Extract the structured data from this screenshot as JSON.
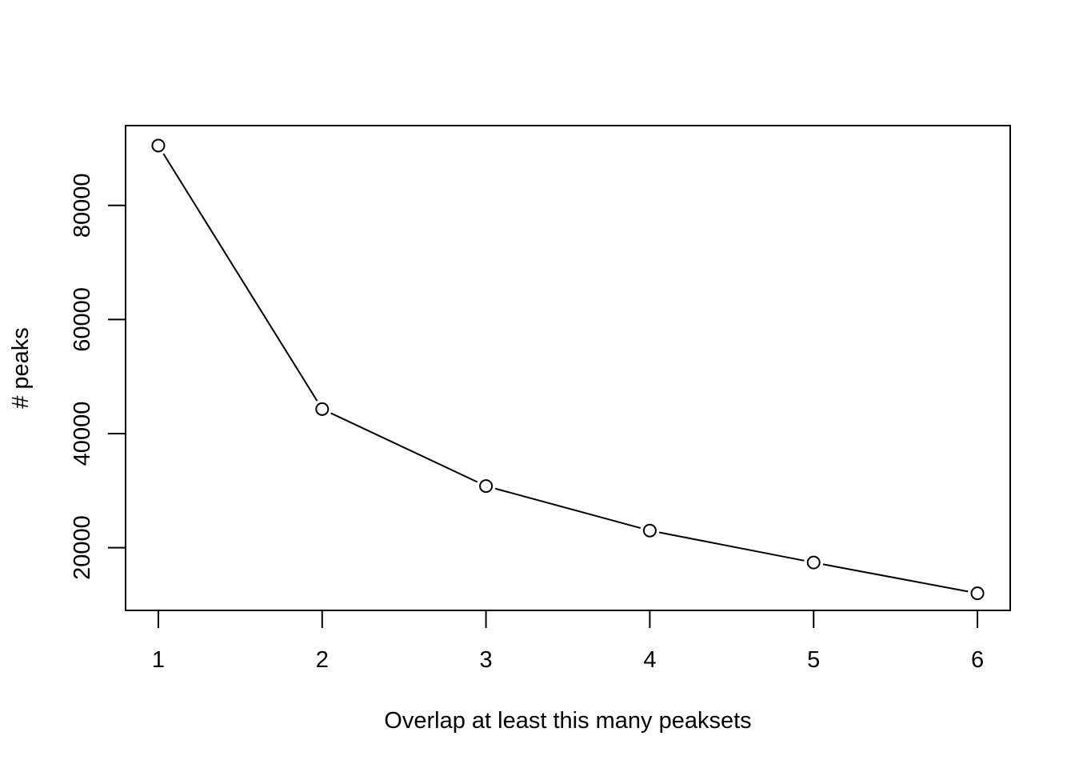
{
  "chart_data": {
    "type": "line",
    "title": "",
    "xlabel": "Overlap at least this many peaksets",
    "ylabel": "# peaks",
    "x": [
      1,
      2,
      3,
      4,
      5,
      6
    ],
    "series": [
      {
        "values": [
          90500,
          44300,
          30800,
          23000,
          17400,
          12000
        ]
      }
    ],
    "x_ticks": [
      1,
      2,
      3,
      4,
      5,
      6
    ],
    "x_tick_labels": [
      "1",
      "2",
      "3",
      "4",
      "5",
      "6"
    ],
    "y_ticks": [
      20000,
      40000,
      60000,
      80000
    ],
    "y_tick_labels": [
      "20000",
      "40000",
      "60000",
      "80000"
    ],
    "xlim": [
      0.8,
      6.2
    ],
    "ylim": [
      9000,
      94000
    ],
    "marker": "open-circle",
    "line_color": "#000000",
    "grid": false,
    "legend": "none"
  }
}
